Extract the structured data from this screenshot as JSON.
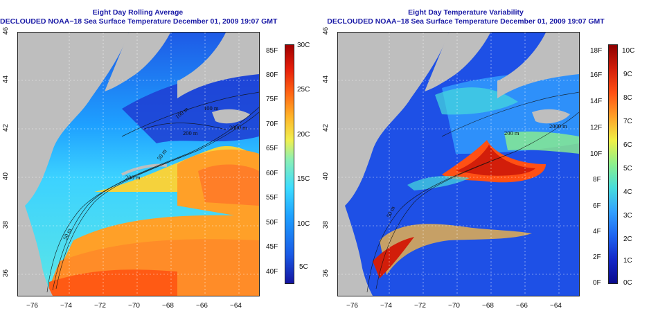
{
  "left_panel": {
    "title_line1": "Eight Day Rolling Average",
    "title_line2": "DECLOUDED NOAA−18 Sea Surface Temperature December 01, 2009 19:07 GMT",
    "colorbar_f_labels": [
      "85F",
      "80F",
      "75F",
      "70F",
      "65F",
      "60F",
      "55F",
      "50F",
      "45F",
      "40F"
    ],
    "colorbar_c_labels": [
      "30C",
      "25C",
      "20C",
      "15C",
      "10C",
      "5C"
    ],
    "contour_labels": [
      "200 m",
      "100 m",
      "200 m",
      "50 m",
      "2000 m",
      "50 m",
      "100 m"
    ],
    "colors": [
      "#1414a0",
      "#1a5ae6",
      "#1ea0ff",
      "#3cdcff",
      "#8cf0b4",
      "#f0f050",
      "#ffb428",
      "#ff6414",
      "#e61e0a",
      "#a00000"
    ]
  },
  "right_panel": {
    "title_line1": "Eight Day Temperature Variability",
    "title_line2": "DECLOUDED NOAA−18 Sea Surface Temperature December 01, 2009 19:07 GMT",
    "colorbar_f_labels": [
      "18F",
      "16F",
      "14F",
      "12F",
      "10F",
      "8F",
      "6F",
      "4F",
      "2F",
      "0F"
    ],
    "colorbar_c_labels": [
      "10C",
      "9C",
      "8C",
      "7C",
      "6C",
      "5C",
      "4C",
      "3C",
      "2C",
      "1C",
      "0C"
    ],
    "contour_labels": [
      "200 m",
      "2000 m",
      "50 m"
    ],
    "colors": [
      "#0a0a8c",
      "#1428c8",
      "#1e64f0",
      "#32a0ff",
      "#46dcdc",
      "#8cf08c",
      "#f0f046",
      "#ffa028",
      "#ff5014",
      "#d21e0a",
      "#8c0000"
    ]
  },
  "axes": {
    "lat_labels": [
      "46",
      "44",
      "42",
      "40",
      "38",
      "36"
    ],
    "lon_labels": [
      "−76",
      "−74",
      "−72",
      "−70",
      "−68",
      "−66",
      "−64"
    ]
  },
  "land_color": "#bebebe"
}
